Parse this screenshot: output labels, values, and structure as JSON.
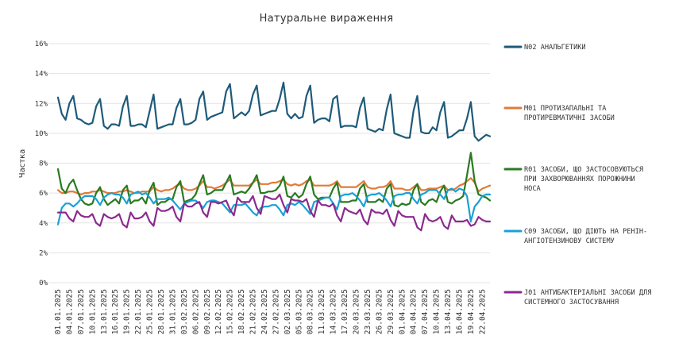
{
  "chart_data": {
    "type": "line",
    "title": "Натуральне  вираження",
    "xlabel": "",
    "ylabel": "Частка",
    "ylim": [
      0,
      16
    ],
    "yticks": [
      "0%",
      "2%",
      "4%",
      "6%",
      "8%",
      "10%",
      "12%",
      "14%",
      "16%"
    ],
    "ytick_values": [
      0,
      2,
      4,
      6,
      8,
      10,
      12,
      14,
      16
    ],
    "grid": true,
    "legend_position": "right",
    "x": [
      "01.01.2025",
      "02.01.2025",
      "03.01.2025",
      "04.01.2025",
      "05.01.2025",
      "06.01.2025",
      "07.01.2025",
      "08.01.2025",
      "09.01.2025",
      "10.01.2025",
      "11.01.2025",
      "12.01.2025",
      "13.01.2025",
      "14.01.2025",
      "15.01.2025",
      "16.01.2025",
      "17.01.2025",
      "18.01.2025",
      "19.01.2025",
      "20.01.2025",
      "21.01.2025",
      "22.01.2025",
      "23.01.2025",
      "24.01.2025",
      "25.01.2025",
      "26.01.2025",
      "27.01.2025",
      "28.01.2025",
      "29.01.2025",
      "30.01.2025",
      "31.01.2025",
      "01.02.2025",
      "02.02.2025",
      "03.02.2025",
      "04.02.2025",
      "05.02.2025",
      "06.02.2025",
      "07.02.2025",
      "08.02.2025",
      "09.02.2025",
      "10.02.2025",
      "11.02.2025",
      "12.02.2025",
      "13.02.2025",
      "14.02.2025",
      "15.02.2025",
      "16.02.2025",
      "17.02.2025",
      "18.02.2025",
      "19.02.2025",
      "20.02.2025",
      "21.02.2025",
      "22.02.2025",
      "23.02.2025",
      "24.02.2025",
      "25.02.2025",
      "26.02.2025",
      "27.02.2025",
      "28.02.2025",
      "01.03.2025",
      "02.03.2025",
      "03.03.2025",
      "04.03.2025",
      "05.03.2025",
      "06.03.2025",
      "07.03.2025",
      "08.03.2025",
      "09.03.2025",
      "10.03.2025",
      "11.03.2025",
      "12.03.2025",
      "13.03.2025",
      "14.03.2025",
      "15.03.2025",
      "16.03.2025",
      "17.03.2025",
      "18.03.2025",
      "19.03.2025",
      "20.03.2025",
      "21.03.2025",
      "22.03.2025",
      "23.03.2025",
      "24.03.2025",
      "25.03.2025",
      "26.03.2025",
      "27.03.2025",
      "28.03.2025",
      "29.03.2025",
      "30.03.2025",
      "31.03.2025",
      "01.04.2025",
      "02.04.2025",
      "03.04.2025",
      "04.04.2025",
      "05.04.2025",
      "06.04.2025",
      "07.04.2025",
      "08.04.2025",
      "09.04.2025",
      "10.04.2025",
      "11.04.2025",
      "12.04.2025",
      "13.04.2025",
      "14.04.2025",
      "15.04.2025",
      "16.04.2025",
      "17.04.2025",
      "18.04.2025",
      "19.04.2025",
      "20.04.2025",
      "21.04.2025",
      "22.04.2025",
      "23.04.2025",
      "24.04.2025"
    ],
    "xtick_labels": [
      "01.01.2025",
      "04.01.2025",
      "07.01.2025",
      "10.01.2025",
      "13.01.2025",
      "16.01.2025",
      "19.01.2025",
      "22.01.2025",
      "25.01.2025",
      "28.01.2025",
      "31.01.2025",
      "03.02.2025",
      "06.02.2025",
      "09.02.2025",
      "12.02.2025",
      "15.02.2025",
      "18.02.2025",
      "21.02.2025",
      "24.02.2025",
      "27.02.2025",
      "02.03.2025",
      "05.03.2025",
      "08.03.2025",
      "11.03.2025",
      "14.03.2025",
      "17.03.2025",
      "20.03.2025",
      "23.03.2025",
      "26.03.2025",
      "29.03.2025",
      "01.04.2025",
      "04.04.2025",
      "07.04.2025",
      "10.04.2025",
      "13.04.2025",
      "16.04.2025",
      "19.04.2025",
      "22.04.2025"
    ],
    "series": [
      {
        "name": "N02 АНАЛЬГЕТИКИ",
        "legend_lines": [
          "N02 АНАЛЬГЕТИКИ"
        ],
        "color": "#1f5a7a",
        "values": [
          12.4,
          11.3,
          10.9,
          12.0,
          12.5,
          11.0,
          10.9,
          10.7,
          10.6,
          10.7,
          11.8,
          12.3,
          10.5,
          10.3,
          10.6,
          10.6,
          10.5,
          11.8,
          12.5,
          10.5,
          10.5,
          10.6,
          10.6,
          10.4,
          11.5,
          12.6,
          10.3,
          10.4,
          10.5,
          10.6,
          10.6,
          11.7,
          12.3,
          10.6,
          10.6,
          10.7,
          10.9,
          12.3,
          12.8,
          10.9,
          11.1,
          11.2,
          11.3,
          11.4,
          12.8,
          13.3,
          11.0,
          11.2,
          11.4,
          11.2,
          11.5,
          12.6,
          13.2,
          11.2,
          11.3,
          11.4,
          11.5,
          11.5,
          12.3,
          13.4,
          11.3,
          11.0,
          11.3,
          11.0,
          11.1,
          12.5,
          13.2,
          10.7,
          10.9,
          11.0,
          11.0,
          10.8,
          12.3,
          12.5,
          10.4,
          10.5,
          10.5,
          10.5,
          10.4,
          11.7,
          12.4,
          10.3,
          10.2,
          10.1,
          10.3,
          10.2,
          11.6,
          12.6,
          10.0,
          9.9,
          9.8,
          9.7,
          9.7,
          11.5,
          12.5,
          10.1,
          10.0,
          10.0,
          10.4,
          10.2,
          11.4,
          12.1,
          9.7,
          9.8,
          10.0,
          10.2,
          10.2,
          11.0,
          12.1,
          9.8,
          9.5,
          9.7,
          9.9,
          9.8
        ]
      },
      {
        "name": "M01 ПРОТИЗАПАЛЬНІ ТА ПРОТИРЕВМАТИЧНІ ЗАСОБИ",
        "legend_lines": [
          "M01 ПРОТИЗАПАЛЬНІ ТА",
          "ПРОТИРЕВМАТИЧНІ ЗАСОБИ"
        ],
        "color": "#e07b39",
        "values": [
          6.2,
          6.0,
          6.0,
          6.1,
          6.1,
          6.0,
          5.9,
          6.0,
          6.0,
          6.1,
          6.1,
          6.2,
          6.1,
          6.0,
          6.0,
          6.0,
          6.1,
          6.1,
          6.2,
          6.1,
          6.0,
          6.0,
          6.1,
          6.1,
          6.1,
          6.4,
          6.2,
          6.1,
          6.2,
          6.2,
          6.3,
          6.5,
          6.6,
          6.3,
          6.2,
          6.2,
          6.3,
          6.5,
          6.8,
          6.4,
          6.4,
          6.3,
          6.4,
          6.5,
          6.7,
          6.9,
          6.5,
          6.5,
          6.5,
          6.5,
          6.5,
          6.7,
          6.9,
          6.6,
          6.6,
          6.6,
          6.7,
          6.7,
          6.8,
          6.9,
          6.6,
          6.5,
          6.6,
          6.5,
          6.6,
          6.8,
          6.9,
          6.5,
          6.5,
          6.5,
          6.5,
          6.5,
          6.6,
          6.8,
          6.4,
          6.4,
          6.4,
          6.4,
          6.4,
          6.6,
          6.8,
          6.4,
          6.3,
          6.3,
          6.4,
          6.4,
          6.5,
          6.8,
          6.3,
          6.3,
          6.3,
          6.2,
          6.2,
          6.4,
          6.6,
          6.2,
          6.2,
          6.3,
          6.3,
          6.3,
          6.4,
          6.5,
          6.2,
          6.2,
          6.3,
          6.5,
          6.6,
          6.8,
          7.0,
          6.7,
          6.1,
          6.3,
          6.4,
          6.5
        ]
      },
      {
        "name": "R01 ЗАСОБИ, ЩО ЗАСТОСОВУЮТЬСЯ ПРИ ЗАХВОРЮВАННЯХ ПОРОЖНИНИ НОСА",
        "legend_lines": [
          "R01 ЗАСОБИ, ЩО ЗАСТОСОВУЮТЬСЯ",
          "ПРИ ЗАХВОРЮВАННЯХ ПОРОЖНИНИ",
          "НОСА"
        ],
        "color": "#2a7a22",
        "values": [
          7.6,
          6.3,
          6.0,
          6.6,
          6.9,
          6.2,
          5.6,
          5.3,
          5.2,
          5.3,
          6.0,
          6.4,
          5.6,
          5.2,
          5.4,
          5.6,
          5.3,
          6.2,
          6.5,
          5.3,
          5.5,
          5.5,
          5.7,
          5.3,
          6.2,
          6.7,
          5.2,
          5.4,
          5.4,
          5.6,
          5.6,
          6.4,
          6.8,
          5.4,
          5.5,
          5.6,
          5.9,
          6.6,
          7.2,
          5.9,
          6.0,
          6.2,
          6.2,
          6.2,
          6.7,
          7.2,
          5.9,
          6.0,
          6.1,
          6.0,
          6.3,
          6.7,
          7.2,
          6.0,
          6.0,
          6.1,
          6.1,
          6.2,
          6.5,
          7.1,
          5.8,
          5.7,
          6.0,
          5.7,
          5.9,
          6.6,
          7.1,
          5.9,
          5.6,
          5.7,
          5.7,
          5.7,
          6.3,
          6.7,
          5.4,
          5.4,
          5.4,
          5.5,
          5.5,
          6.3,
          6.6,
          5.4,
          5.4,
          5.4,
          5.6,
          5.4,
          6.3,
          6.6,
          5.2,
          5.1,
          5.3,
          5.2,
          5.3,
          6.2,
          6.6,
          5.4,
          5.2,
          5.5,
          5.6,
          5.4,
          6.1,
          6.5,
          5.4,
          5.3,
          5.5,
          5.6,
          5.8,
          7.2,
          8.7,
          6.8,
          5.9,
          5.8,
          5.7,
          5.5
        ]
      },
      {
        "name": "C09 ЗАСОБИ, ЩО ДІЮТЬ НА РЕНІН-АНГІОТЕНЗИНОВУ СИСТЕМУ",
        "legend_lines": [
          "C09 ЗАСОБИ, ЩО ДІЮТЬ НА РЕНІН-",
          "АНГІОТЕНЗИНОВУ СИСТЕМУ"
        ],
        "color": "#1aa0d6",
        "values": [
          3.9,
          5.0,
          5.3,
          5.3,
          5.1,
          5.3,
          5.6,
          5.8,
          5.8,
          5.8,
          5.6,
          5.2,
          5.7,
          5.9,
          6.0,
          5.9,
          5.9,
          5.7,
          5.3,
          5.9,
          6.0,
          6.1,
          5.9,
          6.0,
          5.7,
          5.3,
          5.6,
          5.6,
          5.6,
          5.7,
          5.5,
          5.2,
          4.9,
          5.3,
          5.4,
          5.5,
          5.5,
          5.3,
          5.0,
          5.4,
          5.5,
          5.5,
          5.4,
          5.3,
          5.0,
          4.7,
          5.2,
          5.2,
          5.2,
          5.3,
          5.0,
          4.7,
          4.5,
          5.0,
          5.1,
          5.1,
          5.2,
          5.2,
          4.9,
          4.5,
          5.2,
          5.3,
          5.2,
          5.4,
          5.2,
          4.9,
          4.6,
          5.4,
          5.5,
          5.6,
          5.7,
          5.7,
          5.3,
          4.9,
          5.8,
          5.9,
          5.9,
          6.0,
          5.8,
          5.5,
          5.1,
          5.8,
          5.9,
          5.9,
          6.0,
          5.8,
          5.5,
          5.1,
          5.8,
          5.9,
          5.9,
          6.0,
          6.0,
          5.6,
          5.3,
          5.9,
          6.0,
          6.2,
          6.2,
          6.2,
          5.9,
          5.6,
          6.2,
          6.3,
          6.1,
          6.3,
          6.2,
          5.8,
          4.1,
          5.1,
          5.4,
          5.8,
          5.9,
          5.9
        ]
      },
      {
        "name": "J01 АНТИБАКТЕРІАЛЬНІ ЗАСОБИ ДЛЯ СИСТЕМНОГО ЗАСТОСУВАННЯ",
        "legend_lines": [
          "J01 АНТИБАКТЕРІАЛЬНІ ЗАСОБИ ДЛЯ",
          "СИСТЕМНОГО ЗАСТОСУВАННЯ"
        ],
        "color": "#8b2a8e",
        "values": [
          4.7,
          4.7,
          4.7,
          4.3,
          4.1,
          4.8,
          4.5,
          4.4,
          4.4,
          4.6,
          4.0,
          3.8,
          4.6,
          4.4,
          4.3,
          4.4,
          4.6,
          3.9,
          3.7,
          4.7,
          4.3,
          4.3,
          4.4,
          4.7,
          4.1,
          3.8,
          5.0,
          4.8,
          4.8,
          4.9,
          5.1,
          4.4,
          4.1,
          5.3,
          5.1,
          5.1,
          5.3,
          5.4,
          4.7,
          4.4,
          5.4,
          5.4,
          5.3,
          5.4,
          5.5,
          4.9,
          4.5,
          5.7,
          5.4,
          5.4,
          5.4,
          5.8,
          5.0,
          4.6,
          5.8,
          5.7,
          5.6,
          5.6,
          5.9,
          5.2,
          4.7,
          5.6,
          5.5,
          5.5,
          5.4,
          5.6,
          4.8,
          4.4,
          5.5,
          5.2,
          5.2,
          5.1,
          5.3,
          4.5,
          4.1,
          5.0,
          4.8,
          4.7,
          4.6,
          4.9,
          4.2,
          3.9,
          4.9,
          4.7,
          4.7,
          4.6,
          4.9,
          4.2,
          3.8,
          4.8,
          4.5,
          4.4,
          4.4,
          4.4,
          3.7,
          3.5,
          4.6,
          4.2,
          4.1,
          4.2,
          4.4,
          3.8,
          3.6,
          4.5,
          4.1,
          4.1,
          4.1,
          4.2,
          3.8,
          3.9,
          4.4,
          4.2,
          4.1,
          4.1
        ]
      }
    ]
  }
}
